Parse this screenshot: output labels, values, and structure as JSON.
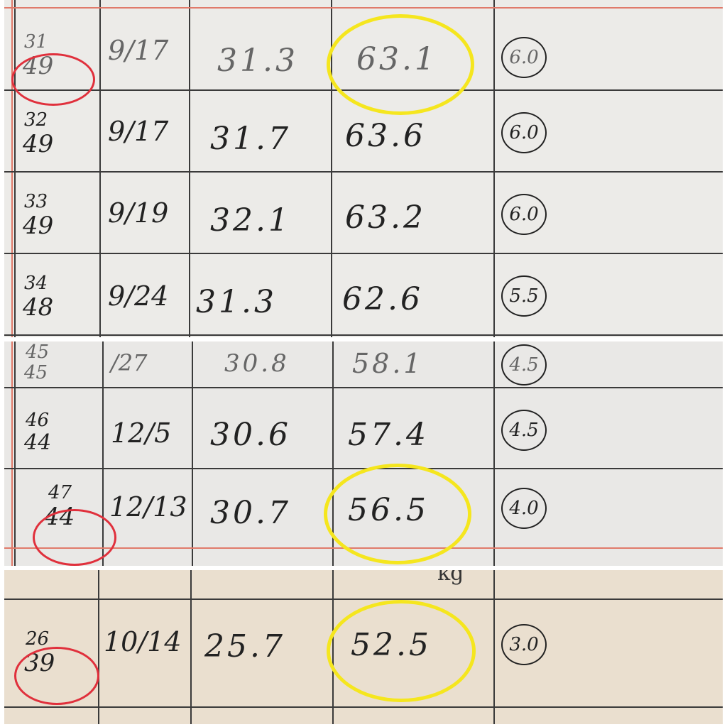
{
  "panels": [
    {
      "rows": [
        {
          "no": "31",
          "sub": "49",
          "date": "9/17",
          "a": "31.3",
          "weight": "63.1",
          "score": "6.0",
          "highlight": true
        },
        {
          "no": "32",
          "sub": "49",
          "date": "9/17",
          "a": "31.7",
          "weight": "63.6",
          "score": "6.0",
          "highlight": false
        },
        {
          "no": "33",
          "sub": "49",
          "date": "9/19",
          "a": "32.1",
          "weight": "63.2",
          "score": "6.0",
          "highlight": false
        },
        {
          "no": "34",
          "sub": "48",
          "date": "9/24",
          "a": "31.3",
          "weight": "62.6",
          "score": "5.5",
          "highlight": false
        }
      ]
    },
    {
      "rows": [
        {
          "no": "45",
          "sub": "45",
          "date": "/27",
          "a": "30.8",
          "weight": "58.1",
          "score": "4.5",
          "highlight": false
        },
        {
          "no": "46",
          "sub": "44",
          "date": "12/5",
          "a": "30.6",
          "weight": "57.4",
          "score": "4.5",
          "highlight": false
        },
        {
          "no": "47",
          "sub": "44",
          "date": "12/13",
          "a": "30.7",
          "weight": "56.5",
          "score": "4.0",
          "highlight": true
        }
      ]
    },
    {
      "header": {
        "unit": "kg"
      },
      "rows": [
        {
          "no": "26",
          "sub": "39",
          "date": "10/14",
          "a": "25.7",
          "weight": "52.5",
          "score": "3.0",
          "highlight": true
        }
      ]
    }
  ],
  "colors": {
    "red_marker": "#e0303c",
    "yellow_marker": "#f5e61e"
  }
}
